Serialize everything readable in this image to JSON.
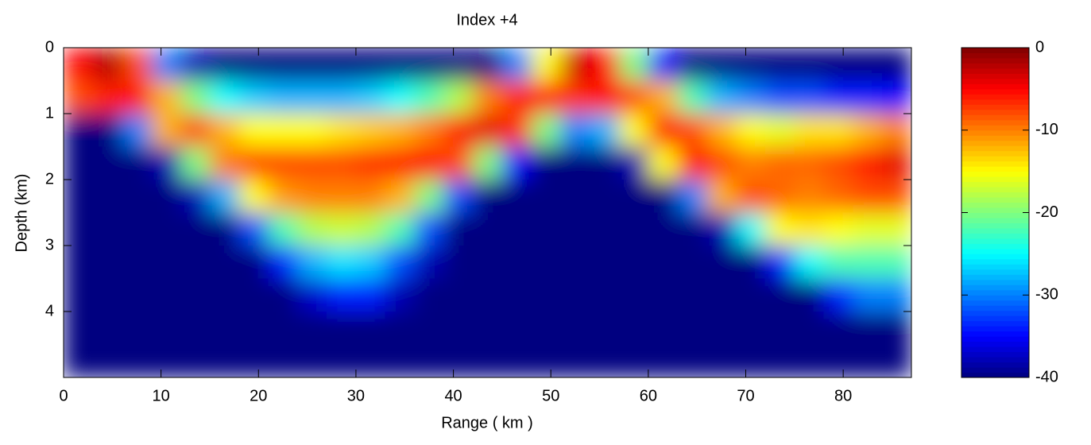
{
  "chart_data": {
    "type": "heatmap",
    "title": "Index +4",
    "xlabel": "Range ( km )",
    "ylabel": "Depth (km)",
    "colormap": "jet",
    "xlim": [
      0,
      87
    ],
    "xticks": [
      0,
      10,
      20,
      30,
      40,
      50,
      60,
      70,
      80
    ],
    "ylim": [
      0,
      5
    ],
    "yticks": [
      0,
      1,
      2,
      3,
      4
    ],
    "y_reversed": true,
    "clim": [
      -40,
      0
    ],
    "cticks": [
      0,
      -10,
      -20,
      -30,
      -40
    ],
    "x": [
      1.5,
      4.5,
      7.5,
      10.5,
      13.5,
      16.5,
      19.5,
      22.5,
      25.5,
      28.5,
      31.5,
      34.5,
      37.5,
      40.5,
      43.5,
      46.5,
      49.5,
      52.5,
      55.5,
      58.5,
      61.5,
      64.5,
      67.5,
      70.5,
      73.5,
      76.5,
      79.5,
      82.5,
      85.5
    ],
    "y": [
      0.25,
      0.75,
      1.25,
      1.75,
      2.25,
      2.75,
      3.25,
      3.75,
      4.25,
      4.75
    ],
    "z": [
      [
        -5,
        -2,
        -8,
        -30,
        -38,
        -40,
        -40,
        -40,
        -40,
        -40,
        -40,
        -40,
        -40,
        -40,
        -40,
        -30,
        -15,
        -3,
        -5,
        -20,
        -35,
        -40,
        -40,
        -40,
        -40,
        -40,
        -40,
        -40,
        -40
      ],
      [
        -8,
        -6,
        -5,
        -12,
        -20,
        -25,
        -27,
        -28,
        -28,
        -28,
        -27,
        -25,
        -22,
        -18,
        -10,
        -6,
        -6,
        -7,
        -5,
        -8,
        -12,
        -22,
        -28,
        -30,
        -32,
        -32,
        -34,
        -34,
        -35
      ],
      [
        -40,
        -40,
        -30,
        -12,
        -8,
        -12,
        -15,
        -15,
        -15,
        -14,
        -13,
        -12,
        -10,
        -6,
        -4,
        -7,
        -20,
        -30,
        -28,
        -15,
        -5,
        -8,
        -12,
        -15,
        -16,
        -14,
        -14,
        -12,
        -10
      ],
      [
        -40,
        -40,
        -40,
        -38,
        -20,
        -10,
        -8,
        -8,
        -8,
        -8,
        -7,
        -6,
        -5,
        -8,
        -20,
        -35,
        -40,
        -40,
        -40,
        -38,
        -15,
        -5,
        -8,
        -10,
        -9,
        -9,
        -8,
        -6,
        -4
      ],
      [
        -40,
        -40,
        -40,
        -40,
        -38,
        -28,
        -15,
        -11,
        -10,
        -10,
        -10,
        -12,
        -20,
        -32,
        -40,
        -40,
        -40,
        -40,
        -40,
        -40,
        -40,
        -30,
        -12,
        -8,
        -9,
        -10,
        -9,
        -8,
        -8
      ],
      [
        -40,
        -40,
        -40,
        -40,
        -40,
        -40,
        -32,
        -22,
        -18,
        -17,
        -18,
        -22,
        -32,
        -40,
        -40,
        -40,
        -40,
        -40,
        -40,
        -40,
        -40,
        -40,
        -38,
        -25,
        -15,
        -14,
        -15,
        -16,
        -16
      ],
      [
        -40,
        -40,
        -40,
        -40,
        -40,
        -40,
        -40,
        -34,
        -28,
        -26,
        -27,
        -32,
        -38,
        -40,
        -40,
        -40,
        -40,
        -40,
        -40,
        -40,
        -40,
        -40,
        -40,
        -40,
        -34,
        -25,
        -22,
        -22,
        -22
      ],
      [
        -40,
        -40,
        -40,
        -40,
        -40,
        -40,
        -40,
        -40,
        -37,
        -34,
        -34,
        -38,
        -40,
        -40,
        -40,
        -40,
        -40,
        -40,
        -40,
        -40,
        -40,
        -40,
        -40,
        -40,
        -40,
        -40,
        -34,
        -30,
        -30
      ],
      [
        -40,
        -40,
        -40,
        -40,
        -40,
        -40,
        -40,
        -40,
        -40,
        -40,
        -40,
        -40,
        -40,
        -40,
        -40,
        -40,
        -40,
        -40,
        -40,
        -40,
        -40,
        -40,
        -40,
        -40,
        -40,
        -40,
        -40,
        -40,
        -40
      ],
      [
        -40,
        -40,
        -40,
        -40,
        -40,
        -40,
        -40,
        -40,
        -40,
        -40,
        -40,
        -40,
        -40,
        -40,
        -40,
        -40,
        -40,
        -40,
        -40,
        -40,
        -40,
        -40,
        -40,
        -40,
        -40,
        -40,
        -40,
        -40,
        -40
      ]
    ]
  }
}
